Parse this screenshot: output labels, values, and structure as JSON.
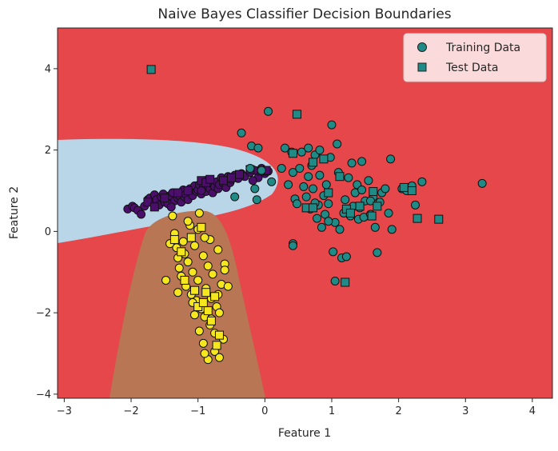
{
  "chart_data": {
    "type": "scatter",
    "title": "Naive Bayes Classifier Decision Boundaries",
    "xlabel": "Feature 1",
    "ylabel": "Feature 2",
    "xlim": [
      -3.1,
      4.3
    ],
    "ylim": [
      -4.1,
      5.0
    ],
    "xticks": [
      -3,
      -2,
      -1,
      0,
      1,
      2,
      3,
      4
    ],
    "yticks": [
      -4,
      -2,
      0,
      2,
      4
    ],
    "xtick_labels": [
      "−3",
      "−2",
      "−1",
      "0",
      "1",
      "2",
      "3",
      "4"
    ],
    "ytick_labels": [
      "−4",
      "−2",
      "0",
      "2",
      "4"
    ],
    "grid": false,
    "legend": {
      "position": "top-right",
      "entries": [
        {
          "label": "Training Data",
          "marker": "circle",
          "color": "#1f8a86"
        },
        {
          "label": "Test Data",
          "marker": "square",
          "color": "#1f8a86"
        }
      ]
    },
    "regions": [
      {
        "class": "teal",
        "color": "#e5474a"
      },
      {
        "class": "purple",
        "color": "#b8d6e8"
      },
      {
        "class": "yellow",
        "color": "#b87654"
      }
    ],
    "classes": [
      {
        "name": "purple",
        "color": "#4b0f6b",
        "train": [
          [
            -2.05,
            0.55
          ],
          [
            -1.98,
            0.62
          ],
          [
            -1.95,
            0.58
          ],
          [
            -1.9,
            0.52
          ],
          [
            -1.85,
            0.42
          ],
          [
            -1.8,
            0.62
          ],
          [
            -1.75,
            0.78
          ],
          [
            -1.72,
            0.82
          ],
          [
            -1.68,
            0.7
          ],
          [
            -1.65,
            0.9
          ],
          [
            -1.62,
            0.78
          ],
          [
            -1.58,
            0.65
          ],
          [
            -1.55,
            0.85
          ],
          [
            -1.52,
            0.92
          ],
          [
            -1.5,
            0.72
          ],
          [
            -1.45,
            0.68
          ],
          [
            -1.42,
            0.88
          ],
          [
            -1.38,
            0.95
          ],
          [
            -1.35,
            0.75
          ],
          [
            -1.3,
            0.82
          ],
          [
            -1.28,
            0.88
          ],
          [
            -1.25,
            0.72
          ],
          [
            -1.22,
            1.02
          ],
          [
            -1.2,
            0.85
          ],
          [
            -1.18,
            0.92
          ],
          [
            -1.15,
            0.78
          ],
          [
            -1.12,
            1.05
          ],
          [
            -1.1,
            0.95
          ],
          [
            -1.08,
            0.88
          ],
          [
            -1.05,
            1.12
          ],
          [
            -1.02,
            0.98
          ],
          [
            -1.0,
            1.02
          ],
          [
            -0.98,
            1.15
          ],
          [
            -0.95,
            0.92
          ],
          [
            -0.92,
            1.08
          ],
          [
            -0.9,
            1.25
          ],
          [
            -0.88,
            0.98
          ],
          [
            -0.85,
            1.12
          ],
          [
            -0.82,
            1.05
          ],
          [
            -0.8,
            1.18
          ],
          [
            -0.78,
            0.95
          ],
          [
            -0.75,
            1.1
          ],
          [
            -0.72,
            1.22
          ],
          [
            -0.7,
            1.05
          ],
          [
            -0.68,
            1.15
          ],
          [
            -0.65,
            1.32
          ],
          [
            -0.62,
            1.18
          ],
          [
            -0.6,
            1.25
          ],
          [
            -0.58,
            1.08
          ],
          [
            -0.55,
            1.35
          ],
          [
            -0.52,
            1.2
          ],
          [
            -0.5,
            1.28
          ],
          [
            -0.45,
            1.38
          ],
          [
            -0.4,
            1.3
          ],
          [
            -0.35,
            1.42
          ],
          [
            -0.3,
            1.35
          ],
          [
            -0.22,
            1.45
          ],
          [
            -0.15,
            1.5
          ],
          [
            -0.1,
            1.32
          ],
          [
            -0.05,
            1.55
          ],
          [
            0.0,
            1.42
          ],
          [
            0.05,
            1.48
          ],
          [
            -0.18,
            1.25
          ],
          [
            -0.95,
            1.0
          ],
          [
            -1.4,
            0.6
          ]
        ],
        "test": [
          [
            -1.75,
            0.72
          ],
          [
            -1.65,
            0.6
          ],
          [
            -1.5,
            0.82
          ],
          [
            -1.3,
            0.95
          ],
          [
            -1.15,
            1.0
          ],
          [
            -0.95,
            1.25
          ],
          [
            -0.88,
            1.2
          ],
          [
            -0.82,
            1.28
          ],
          [
            -0.62,
            1.25
          ],
          [
            -0.5,
            1.32
          ],
          [
            -0.38,
            1.4
          ],
          [
            -0.22,
            1.52
          ],
          [
            -0.05,
            1.48
          ],
          [
            0.02,
            1.5
          ]
        ]
      },
      {
        "name": "yellow",
        "color": "#f5e61e",
        "train": [
          [
            -1.38,
            0.38
          ],
          [
            -1.35,
            -0.05
          ],
          [
            -1.32,
            -0.4
          ],
          [
            -1.3,
            -0.65
          ],
          [
            -1.28,
            -0.9
          ],
          [
            -1.25,
            -1.1
          ],
          [
            -1.22,
            -0.25
          ],
          [
            -1.2,
            -0.55
          ],
          [
            -1.18,
            -1.35
          ],
          [
            -1.15,
            -0.75
          ],
          [
            -1.12,
            0.15
          ],
          [
            -1.1,
            -1.55
          ],
          [
            -1.08,
            -1.0
          ],
          [
            -1.05,
            -0.35
          ],
          [
            -1.02,
            -1.7
          ],
          [
            -1.0,
            -1.2
          ],
          [
            -0.98,
            0.45
          ],
          [
            -0.95,
            -1.9
          ],
          [
            -0.92,
            -0.6
          ],
          [
            -0.9,
            -2.1
          ],
          [
            -0.88,
            -1.4
          ],
          [
            -0.85,
            -0.85
          ],
          [
            -0.82,
            -2.3
          ],
          [
            -0.8,
            -1.65
          ],
          [
            -0.78,
            -1.05
          ],
          [
            -0.75,
            -2.5
          ],
          [
            -0.72,
            -1.85
          ],
          [
            -0.7,
            -0.45
          ],
          [
            -0.68,
            -2.0
          ],
          [
            -0.65,
            -1.3
          ],
          [
            -0.62,
            -2.65
          ],
          [
            -0.6,
            -0.8
          ],
          [
            -0.75,
            -2.95
          ],
          [
            -0.85,
            -3.15
          ],
          [
            -0.68,
            -3.1
          ],
          [
            -0.9,
            -3.0
          ],
          [
            -0.98,
            -2.45
          ],
          [
            -1.05,
            -2.05
          ],
          [
            -1.08,
            -1.75
          ],
          [
            -1.3,
            -1.5
          ],
          [
            -1.48,
            -1.2
          ],
          [
            -1.42,
            -0.3
          ],
          [
            -0.82,
            -0.2
          ],
          [
            -1.0,
            0.05
          ],
          [
            -0.9,
            -0.15
          ],
          [
            -1.15,
            0.25
          ],
          [
            -0.92,
            -2.75
          ],
          [
            -0.8,
            -2.15
          ],
          [
            -0.7,
            -1.55
          ],
          [
            -0.6,
            -0.95
          ],
          [
            -0.55,
            -1.35
          ]
        ],
        "test": [
          [
            -1.35,
            -0.2
          ],
          [
            -1.25,
            -0.5
          ],
          [
            -1.2,
            -1.2
          ],
          [
            -1.1,
            -0.15
          ],
          [
            -1.05,
            -1.45
          ],
          [
            -1.0,
            -1.85
          ],
          [
            -0.95,
            0.1
          ],
          [
            -0.92,
            -1.75
          ],
          [
            -0.88,
            -1.5
          ],
          [
            -0.85,
            -1.95
          ],
          [
            -0.8,
            -2.2
          ],
          [
            -0.75,
            -1.6
          ],
          [
            -0.72,
            -2.8
          ],
          [
            -0.68,
            -2.55
          ]
        ]
      },
      {
        "name": "teal",
        "color": "#1f8a86",
        "train": [
          [
            0.05,
            2.95
          ],
          [
            -0.35,
            2.42
          ],
          [
            -0.2,
            2.1
          ],
          [
            -0.1,
            2.05
          ],
          [
            -0.05,
            1.5
          ],
          [
            -0.15,
            1.05
          ],
          [
            -0.22,
            1.55
          ],
          [
            -0.45,
            0.85
          ],
          [
            -0.12,
            0.78
          ],
          [
            0.1,
            1.22
          ],
          [
            0.25,
            1.55
          ],
          [
            0.3,
            2.05
          ],
          [
            0.4,
            1.95
          ],
          [
            0.45,
            0.8
          ],
          [
            0.35,
            1.15
          ],
          [
            0.42,
            1.45
          ],
          [
            0.48,
            0.68
          ],
          [
            0.52,
            1.55
          ],
          [
            0.55,
            1.95
          ],
          [
            0.58,
            1.1
          ],
          [
            0.62,
            0.85
          ],
          [
            0.65,
            1.35
          ],
          [
            0.68,
            0.55
          ],
          [
            0.7,
            1.62
          ],
          [
            0.72,
            1.05
          ],
          [
            0.75,
            1.88
          ],
          [
            0.78,
            0.32
          ],
          [
            0.8,
            0.65
          ],
          [
            0.82,
            1.38
          ],
          [
            0.85,
            0.1
          ],
          [
            0.88,
            0.88
          ],
          [
            0.9,
            0.42
          ],
          [
            0.92,
            1.15
          ],
          [
            0.95,
            0.68
          ],
          [
            0.98,
            1.82
          ],
          [
            1.0,
            2.62
          ],
          [
            1.02,
            -0.5
          ],
          [
            1.05,
            0.22
          ],
          [
            1.05,
            -1.22
          ],
          [
            1.08,
            2.15
          ],
          [
            1.1,
            1.45
          ],
          [
            1.12,
            0.05
          ],
          [
            1.15,
            -0.65
          ],
          [
            1.18,
            0.45
          ],
          [
            1.2,
            0.78
          ],
          [
            1.22,
            -0.62
          ],
          [
            1.25,
            1.32
          ],
          [
            1.28,
            0.38
          ],
          [
            1.3,
            1.68
          ],
          [
            1.32,
            0.62
          ],
          [
            1.35,
            0.95
          ],
          [
            1.38,
            1.15
          ],
          [
            1.4,
            0.3
          ],
          [
            1.42,
            0.58
          ],
          [
            1.45,
            1.02
          ],
          [
            1.48,
            0.35
          ],
          [
            1.5,
            0.75
          ],
          [
            1.55,
            1.25
          ],
          [
            1.58,
            0.42
          ],
          [
            1.62,
            0.85
          ],
          [
            1.65,
            0.1
          ],
          [
            1.68,
            -0.52
          ],
          [
            1.72,
            0.72
          ],
          [
            1.75,
            0.95
          ],
          [
            1.8,
            1.05
          ],
          [
            1.85,
            0.45
          ],
          [
            1.88,
            1.78
          ],
          [
            1.9,
            0.05
          ],
          [
            2.05,
            1.05
          ],
          [
            2.12,
            1.0
          ],
          [
            2.2,
            1.12
          ],
          [
            2.25,
            0.65
          ],
          [
            2.35,
            1.22
          ],
          [
            3.25,
            1.18
          ],
          [
            0.42,
            -0.3
          ],
          [
            0.42,
            -0.35
          ],
          [
            0.65,
            2.05
          ],
          [
            0.82,
            2.0
          ],
          [
            1.45,
            1.72
          ],
          [
            0.95,
            0.25
          ],
          [
            0.75,
            0.7
          ],
          [
            1.58,
            0.75
          ]
        ],
        "test": [
          [
            0.48,
            2.88
          ],
          [
            0.42,
            1.92
          ],
          [
            0.72,
            1.7
          ],
          [
            0.88,
            1.78
          ],
          [
            0.95,
            0.95
          ],
          [
            0.62,
            0.58
          ],
          [
            0.72,
            0.58
          ],
          [
            1.12,
            1.35
          ],
          [
            1.22,
            0.55
          ],
          [
            1.28,
            0.45
          ],
          [
            1.42,
            0.62
          ],
          [
            1.62,
            0.98
          ],
          [
            1.68,
            0.62
          ],
          [
            1.6,
            0.38
          ],
          [
            2.08,
            1.08
          ],
          [
            2.2,
            1.0
          ],
          [
            2.28,
            0.32
          ],
          [
            2.6,
            0.3
          ],
          [
            1.2,
            -1.25
          ]
        ]
      }
    ],
    "outliers": [
      {
        "x": -1.7,
        "y": 3.98,
        "color": "#1f8a86",
        "set": "test"
      }
    ]
  }
}
